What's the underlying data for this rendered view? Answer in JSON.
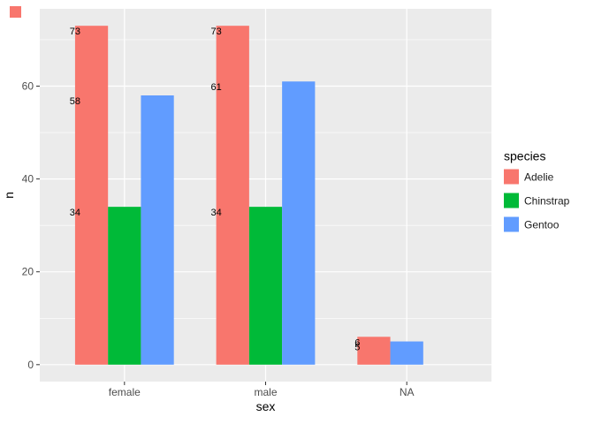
{
  "chart_data": {
    "type": "bar",
    "title": "",
    "xlabel": "sex",
    "ylabel": "n",
    "legend_title": "species",
    "legend_position": "right",
    "categories": [
      "female",
      "male",
      "NA"
    ],
    "series": [
      {
        "name": "Adelie",
        "color": "#F8766D",
        "values": [
          73,
          73,
          6
        ]
      },
      {
        "name": "Chinstrap",
        "color": "#00BA38",
        "values": [
          34,
          34,
          null
        ]
      },
      {
        "name": "Gentoo",
        "color": "#619CFF",
        "values": [
          58,
          61,
          5
        ]
      }
    ],
    "yticks": [
      0,
      20,
      40,
      60
    ],
    "ylim": [
      -3.65,
      76.65
    ],
    "bar_value_labels_shown": true,
    "grid": true,
    "panel_bg": "#EBEBEB",
    "grid_color": "#FFFFFF",
    "axis_text_color": "#4D4D4D",
    "tick_color": "#333333",
    "label_text_color": "#000000"
  },
  "artifacts": {
    "corner_square_color": "#F8766D"
  }
}
